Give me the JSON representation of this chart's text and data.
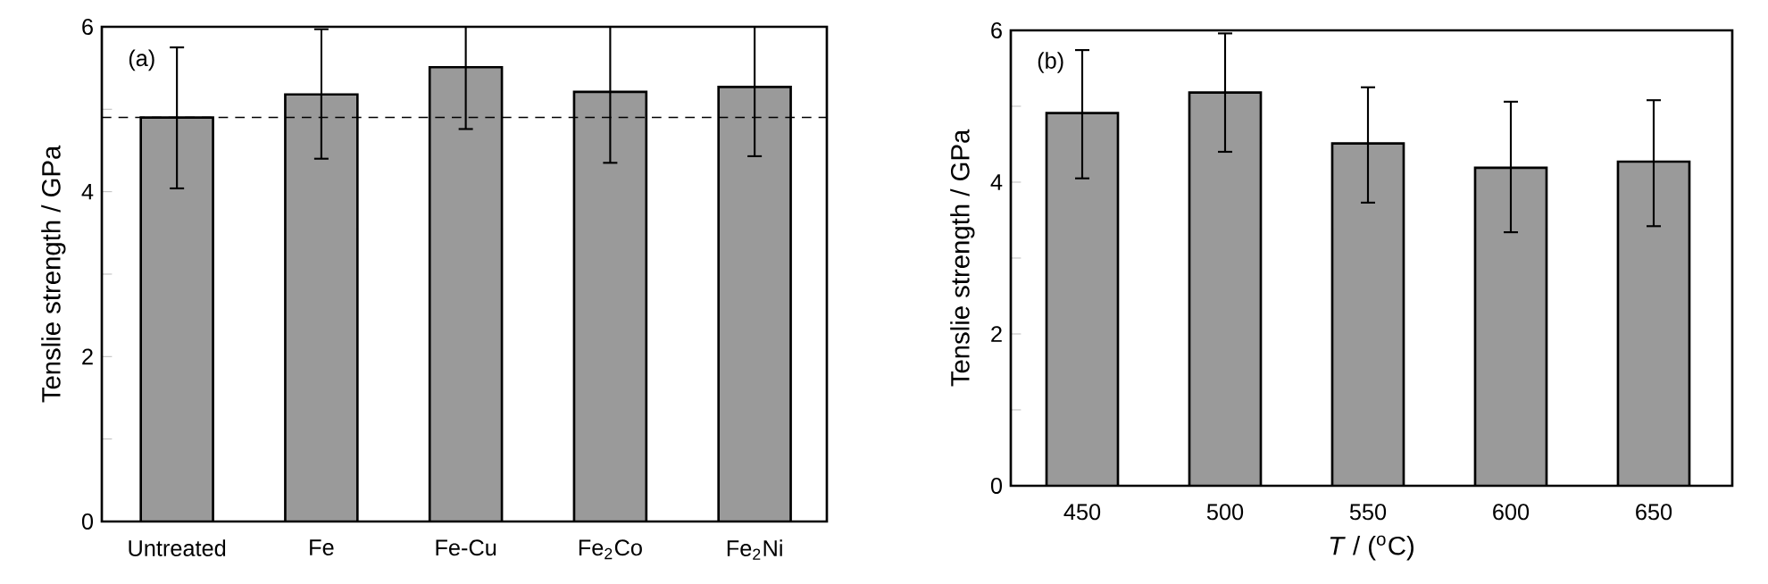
{
  "chart_data": [
    {
      "type": "bar",
      "categories": [
        "Untreated",
        "Fe",
        "Fe-Cu",
        "Fe$_{2}$Co",
        "Fe$_{2}$Ni"
      ],
      "values": [
        4.9,
        5.18,
        5.51,
        5.21,
        5.27
      ],
      "color": "#9a9a9a",
      "errors": [
        [
          4.04,
          5.75
        ],
        [
          4.4,
          5.97
        ],
        [
          4.76,
          6
        ],
        [
          4.35,
          6
        ],
        [
          4.43,
          6
        ]
      ],
      "ylim": [
        0,
        6
      ],
      "yticks": [
        0,
        {
          "value": 1,
          "label": null
        },
        2,
        {
          "value": 3,
          "label": null
        },
        4,
        {
          "value": 5,
          "label": null
        },
        6
      ],
      "ylabel": "Tenslie strength / GPa",
      "annotations": [
        "(a)"
      ],
      "ref_lines": [
        {
          "axis": "y",
          "value": 4.9,
          "line_style": "dashed"
        }
      ]
    },
    {
      "type": "bar",
      "categories": [
        "450",
        "500",
        "550",
        "600",
        "650"
      ],
      "values": [
        4.91,
        5.18,
        4.51,
        4.19,
        4.27
      ],
      "color": "#9a9a9a",
      "errors": [
        [
          4.05,
          5.74
        ],
        [
          4.4,
          5.96
        ],
        [
          3.73,
          5.25
        ],
        [
          3.34,
          5.06
        ],
        [
          3.42,
          5.08
        ]
      ],
      "ylim": [
        0,
        6
      ],
      "yticks": [
        0,
        {
          "value": 1,
          "label": null
        },
        2,
        {
          "value": 3,
          "label": null
        },
        4,
        {
          "value": 5,
          "label": null
        },
        6
      ],
      "ylabel": "Tenslie strength / GPa",
      "xlabel": "*T* / ($^{o}$C)",
      "annotations": [
        "(b)"
      ]
    }
  ]
}
